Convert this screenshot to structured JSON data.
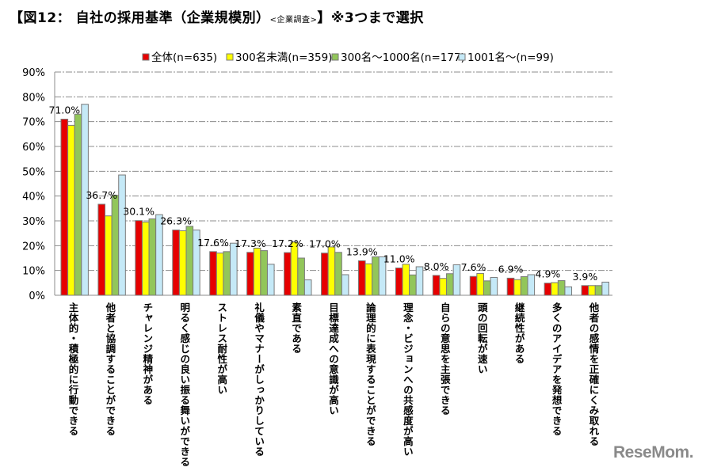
{
  "title": {
    "main": "【図12： 自社の採用基準（企業規模別）",
    "sub": "<企業調査>",
    "suffix": "】※3つまで選択"
  },
  "watermark": "ReseMom",
  "chart_data": {
    "type": "bar",
    "title": "図12： 自社の採用基準（企業規模別）",
    "xlabel": "",
    "ylabel": "",
    "ylim": [
      0,
      90
    ],
    "yticks": [
      "0%",
      "10%",
      "20%",
      "30%",
      "40%",
      "50%",
      "60%",
      "70%",
      "80%",
      "90%"
    ],
    "grid": true,
    "legend_position": "top",
    "categories": [
      "主体的・積極的に行動できる",
      "他者と協調することができる",
      "チャレンジ精神がある",
      "明るく感じの良い振る舞いができる",
      "ストレス耐性が高い",
      "礼儀やマナーがしっかりしている",
      "素直である",
      "目標達成への意識が高い",
      "論理的に表現することができる",
      "理念・ビジョンへの共感度が高い",
      "自らの意思を主張できる",
      "頭の回転が速い",
      "継続性がある",
      "多くのアイデアを発想できる",
      "他者の感情を正確にくみ取れる"
    ],
    "series": [
      {
        "name": "全体(n=635)",
        "color": "#e60000",
        "values": [
          71.0,
          36.7,
          30.1,
          26.3,
          17.6,
          17.3,
          17.2,
          17.0,
          13.9,
          11.0,
          8.0,
          7.6,
          6.9,
          4.9,
          3.9
        ]
      },
      {
        "name": "300名未満(n=359)",
        "color": "#ffff00",
        "values": [
          68.5,
          32.0,
          29.5,
          26.0,
          17.0,
          19.0,
          21.5,
          19.5,
          12.7,
          12.5,
          6.8,
          8.8,
          6.3,
          5.1,
          3.9
        ]
      },
      {
        "name": "300名～1000名(n=177)",
        "color": "#92c65a",
        "values": [
          73.0,
          40.3,
          30.8,
          27.8,
          17.6,
          18.0,
          15.0,
          17.3,
          15.5,
          8.2,
          8.7,
          5.8,
          7.5,
          5.9,
          3.9
        ]
      },
      {
        "name": "1001名～(n=99)",
        "color": "#c5e9f7",
        "values": [
          77.0,
          48.5,
          32.5,
          26.3,
          21.0,
          12.5,
          6.2,
          8.3,
          15.5,
          11.5,
          12.3,
          7.2,
          8.3,
          3.4,
          5.3
        ]
      }
    ],
    "data_labels": [
      "71.0%",
      "36.7%",
      "30.1%",
      "26.3%",
      "17.6%",
      "17.3%",
      "17.2%",
      "17.0%",
      "13.9%",
      "11.0%",
      "8.0%",
      "7.6%",
      "6.9%",
      "4.9%",
      "3.9%"
    ]
  }
}
